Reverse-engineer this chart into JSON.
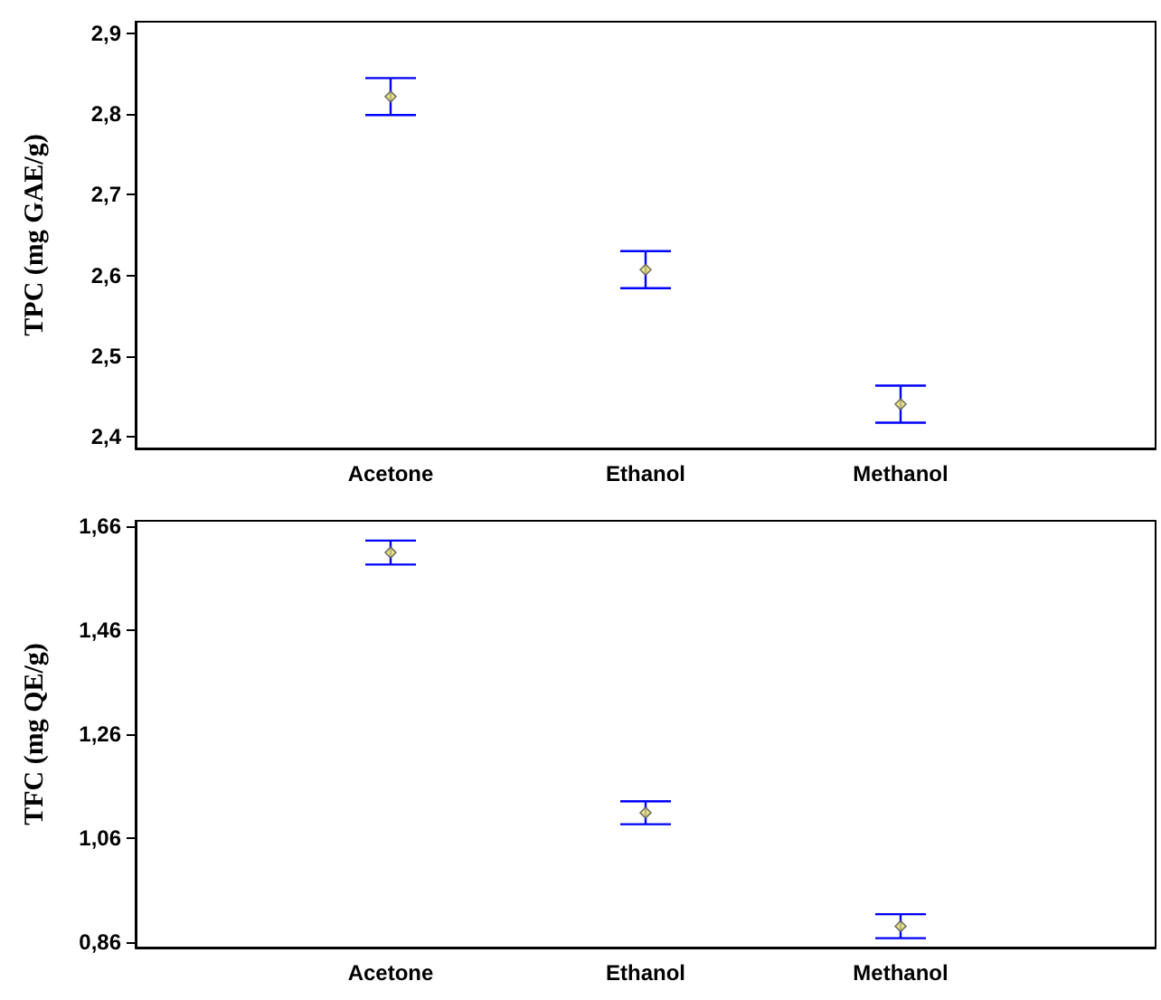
{
  "chart_data": [
    {
      "type": "scatter",
      "ylabel": "TPC (mg GAE/g)",
      "categories": [
        "Acetone",
        "Ethanol",
        "Methanol"
      ],
      "marker": "diamond",
      "grid": false,
      "series": [
        {
          "color": "#e8e060",
          "values": [
            2.822,
            2.607,
            2.44
          ],
          "errors": [
            0.023,
            0.023,
            0.023
          ]
        }
      ],
      "ylim": [
        2.385,
        2.915
      ],
      "yticks": [
        {
          "value": 2.4,
          "label": "2,4"
        },
        {
          "value": 2.5,
          "label": "2,5"
        },
        {
          "value": 2.6,
          "label": "2,6"
        },
        {
          "value": 2.7,
          "label": "2,7"
        },
        {
          "value": 2.8,
          "label": "2,8"
        },
        {
          "value": 2.9,
          "label": "2,9"
        }
      ]
    },
    {
      "type": "scatter",
      "ylabel": "TFC (mg QE/g)",
      "categories": [
        "Acetone",
        "Ethanol",
        "Methanol"
      ],
      "marker": "diamond",
      "grid": false,
      "series": [
        {
          "color": "#e8e060",
          "values": [
            1.609,
            1.109,
            0.891
          ],
          "errors": [
            0.023,
            0.022,
            0.023
          ]
        }
      ],
      "ylim": [
        0.85,
        1.67
      ],
      "yticks": [
        {
          "value": 0.86,
          "label": "0,86"
        },
        {
          "value": 1.06,
          "label": "1,06"
        },
        {
          "value": 1.26,
          "label": "1,26"
        },
        {
          "value": 1.46,
          "label": "1,46"
        },
        {
          "value": 1.66,
          "label": "1,66"
        }
      ]
    }
  ]
}
